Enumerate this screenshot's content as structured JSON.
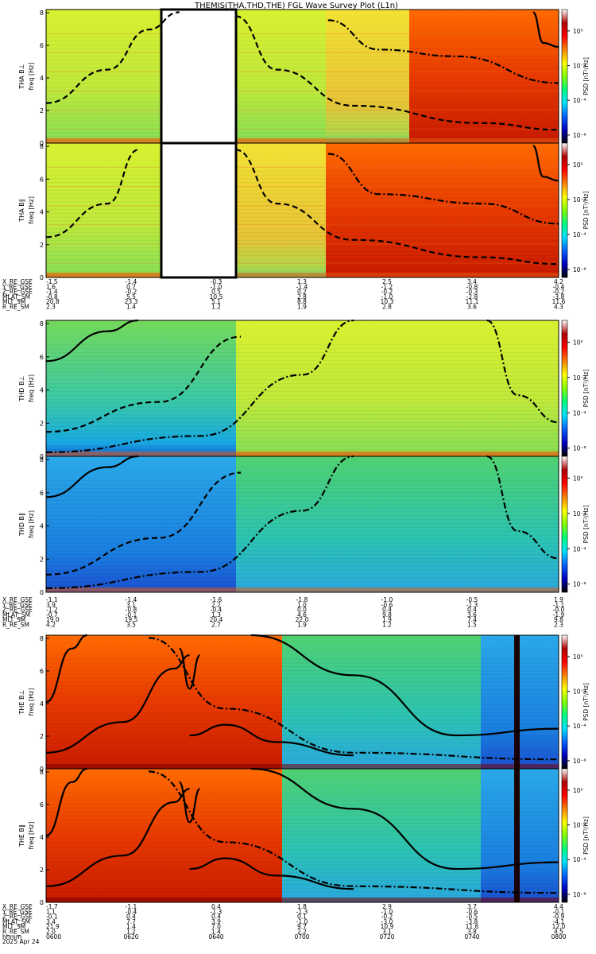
{
  "title": "THEMIS(THA,THD,THE) FGL Wave Survey Plot (L1n)",
  "colorbar": {
    "label": "PSD [nT²/Hz]",
    "ticks": [
      "10⁰",
      "10⁻²",
      "10⁻⁴",
      "10⁻⁶"
    ],
    "stops": [
      "#ffffff",
      "#b00000",
      "#ff0000",
      "#ff8000",
      "#ffff00",
      "#80ff00",
      "#00ff80",
      "#00e0ff",
      "#0060ff",
      "#0000c0",
      "#000000"
    ]
  },
  "chart_data": [
    {
      "type": "heatmap",
      "probe": "THA",
      "component": "B⊥",
      "ylabel": "THA B⊥",
      "yunit": "freq [Hz]",
      "ylim": [
        0,
        8
      ],
      "yticks": [
        "0",
        "2",
        "4",
        "6",
        "8"
      ],
      "data_gap": true
    },
    {
      "type": "heatmap",
      "probe": "THA",
      "component": "B∥",
      "ylabel": "THA B∥",
      "yunit": "freq [Hz]",
      "ylim": [
        0,
        8
      ],
      "yticks": [
        "0",
        "2",
        "4",
        "6",
        "8"
      ],
      "data_gap": true
    },
    {
      "type": "heatmap",
      "probe": "THD",
      "component": "B⊥",
      "ylabel": "THD B⊥",
      "yunit": "freq [Hz]",
      "ylim": [
        0,
        8
      ],
      "yticks": [
        "0",
        "2",
        "4",
        "6",
        "8"
      ],
      "data_gap": false
    },
    {
      "type": "heatmap",
      "probe": "THD",
      "component": "B∥",
      "ylabel": "THD B∥",
      "yunit": "freq [Hz]",
      "ylim": [
        0,
        8
      ],
      "yticks": [
        "0",
        "2",
        "4",
        "6",
        "8"
      ],
      "data_gap": false
    },
    {
      "type": "heatmap",
      "probe": "THE",
      "component": "B⊥",
      "ylabel": "THE B⊥",
      "yunit": "freq [Hz]",
      "ylim": [
        0,
        8
      ],
      "yticks": [
        "0",
        "2",
        "4",
        "6",
        "8"
      ],
      "data_gap": false
    },
    {
      "type": "heatmap",
      "probe": "THE",
      "component": "B∥",
      "ylabel": "THE B∥",
      "yunit": "freq [Hz]",
      "ylim": [
        0,
        8
      ],
      "yticks": [
        "0",
        "2",
        "4",
        "6",
        "8"
      ],
      "data_gap": false
    }
  ],
  "ephemeris": [
    {
      "probe": "THA",
      "labels": [
        "X_RE_GSE",
        "Y_RE_GSE",
        "Z_RE_GSE",
        "MLAT_SM",
        "MLT_SM",
        "R_RE_SM"
      ],
      "columns": [
        [
          "-1.5",
          "-1.4",
          "-0.3",
          "1.3",
          "2.5",
          "3.4",
          "4.2"
        ],
        [
          "1.6",
          "0.7",
          "-1.0",
          "-1.4",
          "-1.2",
          "-0.8",
          "-0.4"
        ],
        [
          "-1.4",
          "-0.2",
          "0.5",
          "0.2",
          "-0.2",
          "-0.3",
          "-0.2"
        ],
        [
          "-0.8",
          "5.5",
          "10.5",
          "2.8",
          "-1.0",
          "-2.8",
          "-3.8"
        ],
        [
          "20.8",
          "23.3",
          "5.1",
          "8.8",
          "10.3",
          "11.1",
          "11.6"
        ],
        [
          "2.3",
          "1.4",
          "1.2",
          "1.9",
          "2.8",
          "3.6",
          "4.3"
        ]
      ]
    },
    {
      "probe": "THD",
      "labels": [
        "X_RE_GSE",
        "Y_RE_GSE",
        "Z_RE_GSE",
        "MLAT_SM",
        "MLT_SM",
        "R_RE_SM"
      ],
      "columns": [
        [
          "-1.1",
          "-1.4",
          "-1.6",
          "-1.8",
          "-1.0",
          "-0.5",
          "1.9"
        ],
        [
          "3.9",
          "3.1",
          "2.2",
          "1.0",
          "-0.6",
          "-1.3",
          "-1.1"
        ],
        [
          "-1.2",
          "-0.8",
          "-0.4",
          "0.0",
          "0.4",
          "0.4",
          "-0.0"
        ],
        [
          "-0.7",
          "-0.1",
          "1.3",
          "4.6",
          "9.8",
          "3.6",
          "-1.9"
        ],
        [
          "19.0",
          "19.5",
          "20.4",
          "22.0",
          "1.9",
          "7.4",
          "9.8"
        ],
        [
          "4.2",
          "3.5",
          "2.7",
          "1.9",
          "1.2",
          "1.5",
          "2.3"
        ]
      ]
    },
    {
      "probe": "THE",
      "labels": [
        "X_RE_GSE",
        "Y_RE_GSE",
        "Z_RE_GSE",
        "MLAT_SM",
        "MLT_SM",
        "R_RE_SM",
        "hhmm",
        "2025 Apr 24"
      ],
      "columns": [
        [
          "-1.7",
          "1.1",
          "-0.1",
          "3.4",
          "21.9",
          "2.0",
          "0600"
        ],
        [
          "-1.1",
          "-0.4",
          "0.4",
          "7.7",
          "1.4",
          "1.2",
          "0620"
        ],
        [
          "0.4",
          "-1.3",
          "0.4",
          "3.9",
          "7.0",
          "1.4",
          "0640"
        ],
        [
          "1.8",
          "-1.3",
          "0.1",
          "-1.0",
          "9.7",
          "2.2",
          "0700"
        ],
        [
          "2.9",
          "-1.0",
          "-0.2",
          "-3.0",
          "10.9",
          "3.1",
          "0720"
        ],
        [
          "3.7",
          "-0.6",
          "-0.5",
          "-3.8",
          "11.6",
          "3.8",
          "0740"
        ],
        [
          "4.4",
          "-0.1",
          "-0.9",
          "-4.1",
          "12.0",
          "4.5",
          "0800"
        ]
      ]
    }
  ]
}
